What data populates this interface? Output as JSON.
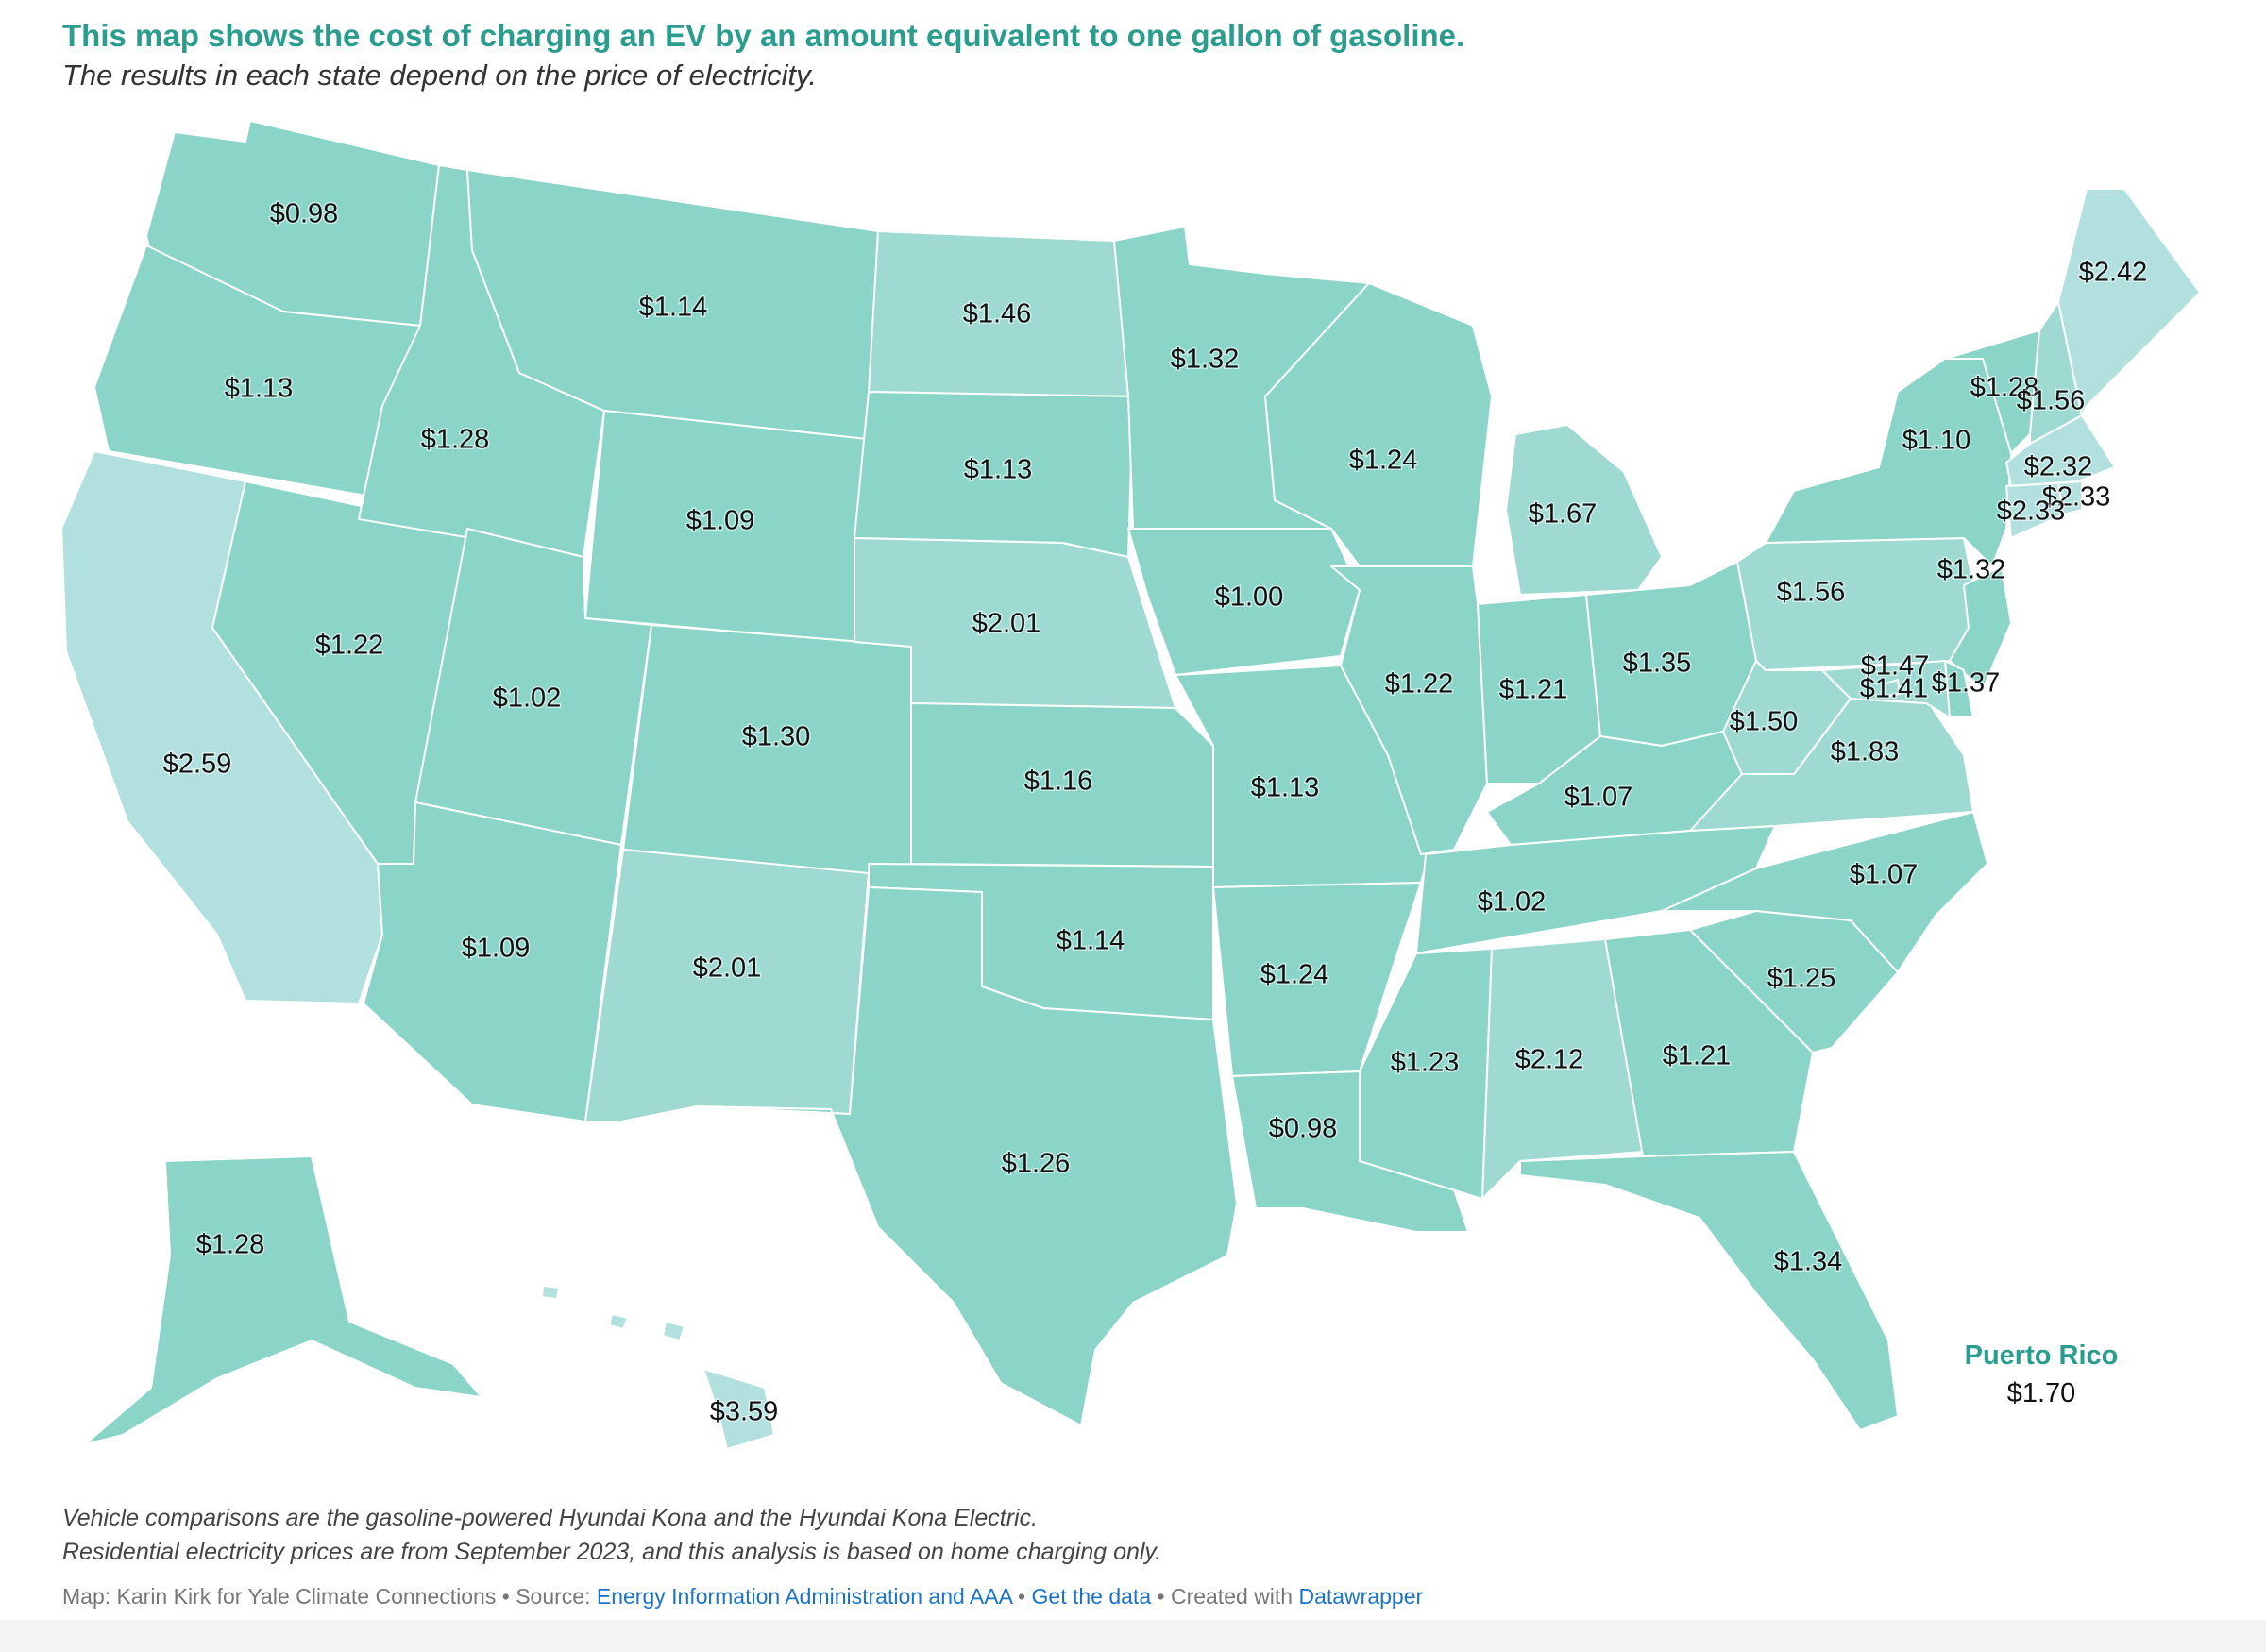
{
  "header": {
    "title": "This map shows the cost of charging an EV by an amount equivalent to one gallon of gasoline.",
    "subtitle": "The results in each state depend on the price of electricity."
  },
  "colors": {
    "low": "#8ad4c8",
    "mid": "#9fdad2",
    "high": "#b2e0de",
    "accent": "#2a9d8f",
    "link": "#1a73c8"
  },
  "states": {
    "WA": "$0.98",
    "OR": "$1.13",
    "CA": "$2.59",
    "NV": "$1.22",
    "ID": "$1.28",
    "MT": "$1.14",
    "WY": "$1.09",
    "UT": "$1.02",
    "AZ": "$1.09",
    "CO": "$1.30",
    "NM": "$2.01",
    "ND": "$1.46",
    "SD": "$1.13",
    "NE": "$2.01",
    "KS": "$1.16",
    "OK": "$1.14",
    "TX": "$1.26",
    "MN": "$1.32",
    "IA": "$1.00",
    "MO": "$1.13",
    "AR": "$1.24",
    "LA": "$0.98",
    "WI": "$1.24",
    "IL": "$1.22",
    "MI": "$1.67",
    "IN": "$1.21",
    "OH": "$1.35",
    "KY": "$1.07",
    "TN": "$1.02",
    "MS": "$1.23",
    "AL": "$2.12",
    "GA": "$1.21",
    "FL": "$1.34",
    "SC": "$1.25",
    "NC": "$1.07",
    "VA": "$1.83",
    "WV": "$1.50",
    "PA": "$1.56",
    "NY": "$1.10",
    "VT": "$1.28",
    "NH": "$1.56",
    "ME": "$2.42",
    "MA": "$2.32",
    "RI": "$2.33",
    "CT": "$2.33",
    "NJ": "$1.32",
    "DE": "$1.37",
    "MD": "$1.41",
    "DC": "$1.47",
    "AK": "$1.28",
    "HI": "$3.59"
  },
  "puerto_rico": {
    "name": "Puerto Rico",
    "value": "$1.70"
  },
  "notes": {
    "line1": "Vehicle comparisons are the gasoline-powered Hyundai Kona and the Hyundai Kona Electric.",
    "line2": "Residential electricity prices are from September 2023, and this analysis is based on home charging only."
  },
  "footer": {
    "credit": "Map: Karin Kirk for Yale Climate Connections",
    "sep": " • ",
    "source_label": "Source: ",
    "source_link": "Energy Information Administration and AAA",
    "get_data": "Get the data",
    "created_with": "Created with ",
    "tool": "Datawrapper"
  }
}
